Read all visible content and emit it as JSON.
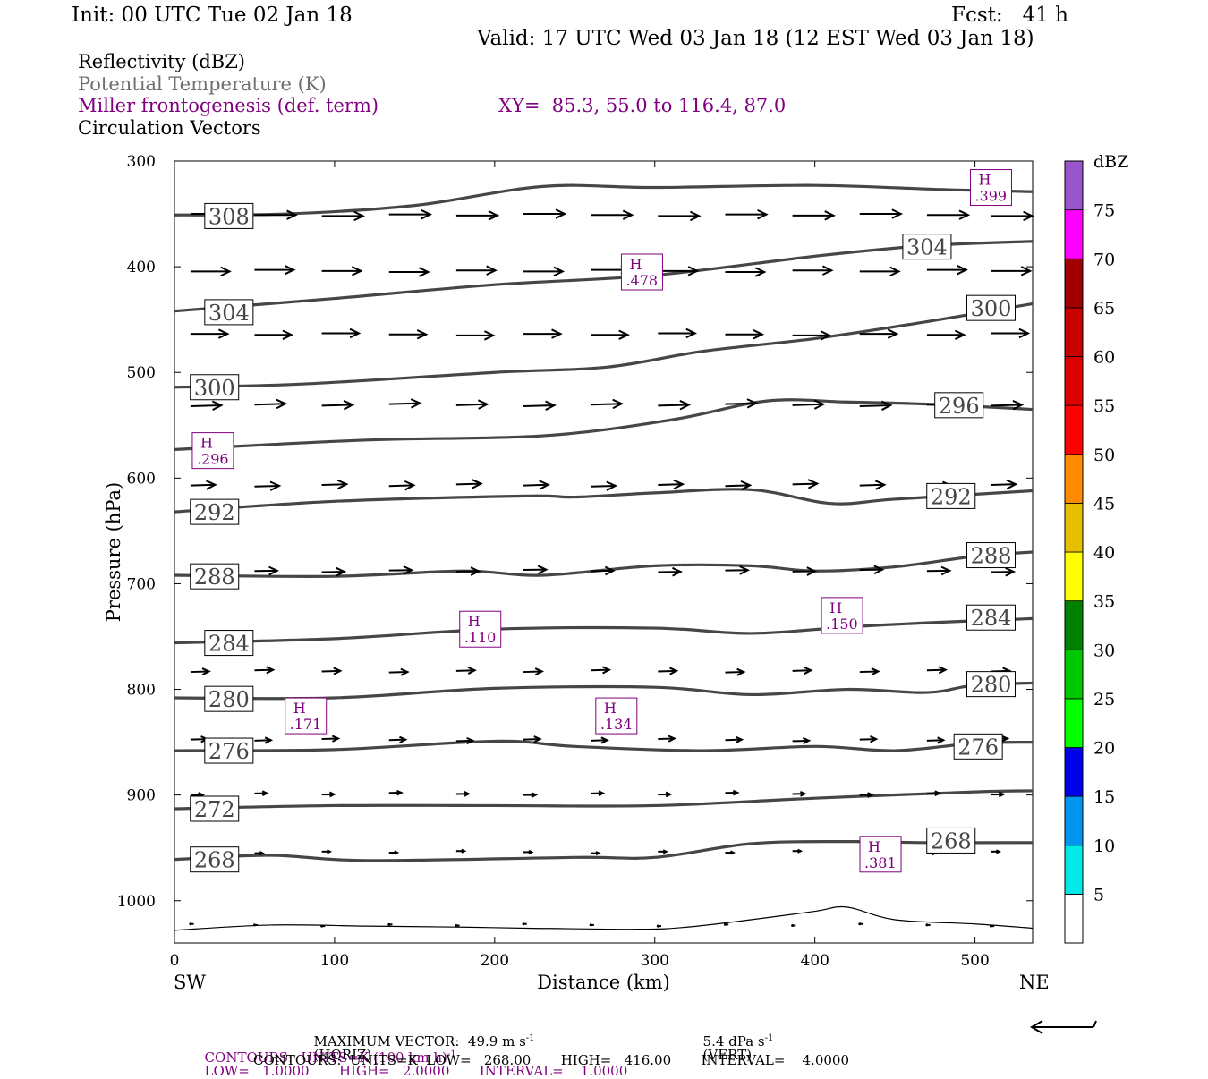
{
  "header": {
    "init": "Init: 00 UTC Tue 02 Jan 18",
    "fcst": "Fcst:   41 h",
    "valid": "Valid: 17 UTC Wed 03 Jan 18 (12 EST Wed 03 Jan 18)"
  },
  "fields": {
    "reflectivity": "Reflectivity (dBZ)",
    "theta": "Potential Temperature (K)",
    "frontogenesis": "Miller frontogenesis (def. term)",
    "xy": "XY=  85.3, 55.0 to 116.4, 87.0",
    "vectors": "Circulation Vectors"
  },
  "footer": {
    "max_vector_text": "MAXIMUM VECTOR:  49.9 m s",
    "horiz": "(HORIZ)",
    "vert_value": "5.4 dPa s",
    "vert": "(VERT)",
    "neg1": "-1",
    "contours_fronto_a": "CONTOURS:  UNITS=K (100 km h)",
    "contours_fronto_b": "LOW=   1.0000       HIGH=   2.0000       INTERVAL=    1.0000",
    "contours_theta": "CONTOURS:  UNITS=K  LOW=   268.00       HIGH=   416.00       INTERVAL=    4.0000"
  },
  "colors": {
    "theta_line": "#464646",
    "fronto": "#800080",
    "vector": "#000000"
  },
  "colorbar": {
    "unit": "dBZ",
    "bins": [
      {
        "label": "5",
        "color": "#00e8e8"
      },
      {
        "label": "10",
        "color": "#0096f0"
      },
      {
        "label": "15",
        "color": "#0000e6"
      },
      {
        "label": "20",
        "color": "#00ff00"
      },
      {
        "label": "25",
        "color": "#00c800"
      },
      {
        "label": "30",
        "color": "#008200"
      },
      {
        "label": "35",
        "color": "#ffff00"
      },
      {
        "label": "40",
        "color": "#e6c000"
      },
      {
        "label": "45",
        "color": "#ff8c00"
      },
      {
        "label": "50",
        "color": "#ff0000"
      },
      {
        "label": "55",
        "color": "#dc0000"
      },
      {
        "label": "60",
        "color": "#c80000"
      },
      {
        "label": "65",
        "color": "#a00000"
      },
      {
        "label": "70",
        "color": "#ff00ff"
      },
      {
        "label": "75",
        "color": "#9955cc"
      }
    ]
  },
  "chart_data": {
    "type": "line",
    "xlabel": "Distance (km)",
    "ylabel": "Pressure (hPa)",
    "x_left": "SW",
    "x_right": "NE",
    "xlim": [
      0,
      536
    ],
    "ylim": [
      300,
      1040
    ],
    "y_reversed": true,
    "x_ticks": [
      0,
      100,
      200,
      300,
      400,
      500
    ],
    "y_ticks": [
      300,
      400,
      500,
      600,
      700,
      800,
      900,
      1000
    ],
    "theta_contours": [
      {
        "value": "308",
        "points": [
          [
            0,
            351
          ],
          [
            70,
            350
          ],
          [
            150,
            342
          ],
          [
            230,
            324
          ],
          [
            300,
            325
          ],
          [
            400,
            323
          ],
          [
            480,
            327
          ],
          [
            536,
            329
          ]
        ],
        "labels": [
          [
            34,
            352
          ]
        ]
      },
      {
        "value": "304",
        "points": [
          [
            0,
            442
          ],
          [
            100,
            430
          ],
          [
            200,
            417
          ],
          [
            300,
            408
          ],
          [
            400,
            390
          ],
          [
            470,
            380
          ],
          [
            536,
            376
          ]
        ],
        "labels": [
          [
            34,
            443
          ],
          [
            470,
            381
          ]
        ]
      },
      {
        "value": "300",
        "points": [
          [
            0,
            514
          ],
          [
            80,
            511
          ],
          [
            200,
            500
          ],
          [
            270,
            495
          ],
          [
            330,
            480
          ],
          [
            400,
            468
          ],
          [
            470,
            452
          ],
          [
            536,
            435
          ]
        ],
        "labels": [
          [
            25,
            514
          ],
          [
            510,
            439
          ]
        ]
      },
      {
        "value": "296",
        "points": [
          [
            0,
            573
          ],
          [
            120,
            564
          ],
          [
            230,
            560
          ],
          [
            310,
            545
          ],
          [
            370,
            527
          ],
          [
            420,
            528
          ],
          [
            470,
            530
          ],
          [
            536,
            535
          ]
        ],
        "labels": [
          [
            490,
            531
          ]
        ]
      },
      {
        "value": "292",
        "points": [
          [
            0,
            632
          ],
          [
            100,
            622
          ],
          [
            220,
            617
          ],
          [
            250,
            618
          ],
          [
            300,
            614
          ],
          [
            360,
            611
          ],
          [
            410,
            624
          ],
          [
            450,
            620
          ],
          [
            536,
            612
          ]
        ],
        "labels": [
          [
            25,
            632
          ],
          [
            485,
            617
          ]
        ]
      },
      {
        "value": "288",
        "points": [
          [
            0,
            692
          ],
          [
            100,
            693
          ],
          [
            180,
            688
          ],
          [
            230,
            692
          ],
          [
            300,
            683
          ],
          [
            360,
            683
          ],
          [
            400,
            688
          ],
          [
            450,
            684
          ],
          [
            500,
            674
          ],
          [
            536,
            670
          ]
        ],
        "labels": [
          [
            25,
            693
          ],
          [
            510,
            673
          ]
        ]
      },
      {
        "value": "284",
        "points": [
          [
            0,
            756
          ],
          [
            100,
            752
          ],
          [
            200,
            743
          ],
          [
            300,
            742
          ],
          [
            360,
            747
          ],
          [
            420,
            741
          ],
          [
            470,
            737
          ],
          [
            536,
            733
          ]
        ],
        "labels": [
          [
            34,
            756
          ],
          [
            510,
            732
          ]
        ]
      },
      {
        "value": "280",
        "points": [
          [
            0,
            808
          ],
          [
            100,
            808
          ],
          [
            200,
            799
          ],
          [
            300,
            798
          ],
          [
            360,
            805
          ],
          [
            420,
            800
          ],
          [
            470,
            803
          ],
          [
            500,
            796
          ],
          [
            536,
            794
          ]
        ],
        "labels": [
          [
            34,
            809
          ],
          [
            510,
            795
          ]
        ]
      },
      {
        "value": "276",
        "points": [
          [
            0,
            858
          ],
          [
            100,
            857
          ],
          [
            200,
            849
          ],
          [
            250,
            854
          ],
          [
            330,
            858
          ],
          [
            400,
            854
          ],
          [
            450,
            858
          ],
          [
            500,
            851
          ],
          [
            536,
            850
          ]
        ],
        "labels": [
          [
            34,
            858
          ],
          [
            502,
            854
          ]
        ]
      },
      {
        "value": "272",
        "points": [
          [
            0,
            913
          ],
          [
            100,
            910
          ],
          [
            200,
            910
          ],
          [
            300,
            910
          ],
          [
            400,
            903
          ],
          [
            500,
            897
          ],
          [
            536,
            896
          ]
        ],
        "labels": [
          [
            25,
            913
          ]
        ]
      },
      {
        "value": "268",
        "points": [
          [
            0,
            961
          ],
          [
            60,
            957
          ],
          [
            120,
            962
          ],
          [
            250,
            959
          ],
          [
            300,
            959
          ],
          [
            360,
            946
          ],
          [
            420,
            944
          ],
          [
            470,
            945
          ],
          [
            536,
            945
          ]
        ],
        "labels": [
          [
            25,
            961
          ],
          [
            485,
            943
          ]
        ]
      }
    ],
    "ground_line": [
      [
        0,
        1028
      ],
      [
        60,
        1023
      ],
      [
        120,
        1024
      ],
      [
        180,
        1025
      ],
      [
        220,
        1026
      ],
      [
        290,
        1027
      ],
      [
        320,
        1025
      ],
      [
        360,
        1018
      ],
      [
        400,
        1010
      ],
      [
        420,
        1006
      ],
      [
        450,
        1018
      ],
      [
        500,
        1022
      ],
      [
        536,
        1026
      ]
    ],
    "frontogenesis_maxima": [
      {
        "label": "H",
        "value": ".399",
        "x": 510,
        "y": 325
      },
      {
        "label": "H",
        "value": ".478",
        "x": 292,
        "y": 405
      },
      {
        "label": "H",
        "value": ".296",
        "x": 24,
        "y": 574
      },
      {
        "label": "H",
        "value": ".110",
        "x": 191,
        "y": 743
      },
      {
        "label": "H",
        "value": ".150",
        "x": 417,
        "y": 730
      },
      {
        "label": "H",
        "value": ".171",
        "x": 82,
        "y": 825
      },
      {
        "label": "H",
        "value": ".134",
        "x": 276,
        "y": 825
      },
      {
        "label": "H",
        "value": ".381",
        "x": 441,
        "y": 956
      }
    ],
    "vector_levels": [
      {
        "p": 351,
        "u": 1.0,
        "w": 0.0
      },
      {
        "p": 404,
        "u": 0.95,
        "w": 0.0
      },
      {
        "p": 464,
        "u": 0.9,
        "w": 0.0
      },
      {
        "p": 531,
        "u": 0.75,
        "w": -0.1
      },
      {
        "p": 607,
        "u": 0.6,
        "w": -0.1
      },
      {
        "p": 688,
        "u": 0.55,
        "w": -0.05
      },
      {
        "p": 783,
        "u": 0.45,
        "w": -0.1
      },
      {
        "p": 848,
        "u": 0.4,
        "w": -0.1
      },
      {
        "p": 899,
        "u": 0.3,
        "w": -0.05
      },
      {
        "p": 954,
        "u": 0.2,
        "w": 0.0
      },
      {
        "p": 1023,
        "u": 0.08,
        "w": 0.0
      }
    ],
    "vector_x": [
      10,
      50,
      92,
      134,
      176,
      218,
      260,
      302,
      344,
      386,
      428,
      470,
      510
    ]
  }
}
